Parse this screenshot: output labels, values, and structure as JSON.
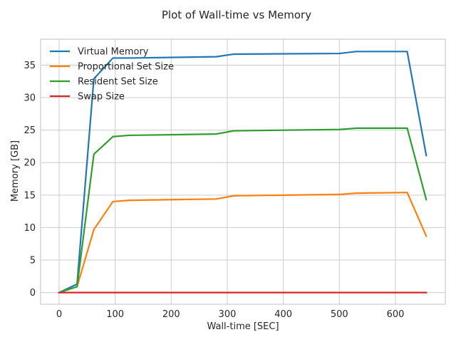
{
  "chart_data": {
    "type": "line",
    "title": "Plot of Wall-time vs Memory",
    "xlabel": "Wall-time [SEC]",
    "ylabel": "Memory [GB]",
    "xlim": [
      -33,
      689
    ],
    "ylim": [
      -1.8,
      39
    ],
    "xticks": [
      0,
      100,
      200,
      300,
      400,
      500,
      600
    ],
    "yticks": [
      0,
      5,
      10,
      15,
      20,
      25,
      30,
      35
    ],
    "grid": true,
    "legend_position": "upper-left",
    "series": [
      {
        "name": "Virtual Memory",
        "color": "#1f77b4",
        "x": [
          0,
          32,
          62,
          96,
          125,
          280,
          312,
          500,
          530,
          621,
          655
        ],
        "y": [
          0,
          1.3,
          32.9,
          36.1,
          36.1,
          36.3,
          36.7,
          36.8,
          37.1,
          37.1,
          21.1
        ]
      },
      {
        "name": "Proportional Set Size",
        "color": "#ff7f0e",
        "x": [
          0,
          32,
          62,
          96,
          125,
          280,
          312,
          500,
          530,
          621,
          655
        ],
        "y": [
          0,
          0.9,
          9.7,
          14.0,
          14.2,
          14.4,
          14.9,
          15.1,
          15.3,
          15.4,
          8.7
        ]
      },
      {
        "name": "Resident Set Size",
        "color": "#2ca02c",
        "x": [
          0,
          32,
          62,
          96,
          125,
          280,
          312,
          500,
          530,
          621,
          655
        ],
        "y": [
          0,
          0.9,
          21.3,
          24.0,
          24.2,
          24.4,
          24.9,
          25.1,
          25.3,
          25.3,
          14.3
        ]
      },
      {
        "name": "Swap Size",
        "color": "#d62728",
        "x": [
          0,
          32,
          62,
          96,
          125,
          280,
          312,
          500,
          530,
          621,
          655
        ],
        "y": [
          0,
          0,
          0,
          0,
          0,
          0,
          0,
          0,
          0,
          0,
          0
        ]
      }
    ]
  }
}
